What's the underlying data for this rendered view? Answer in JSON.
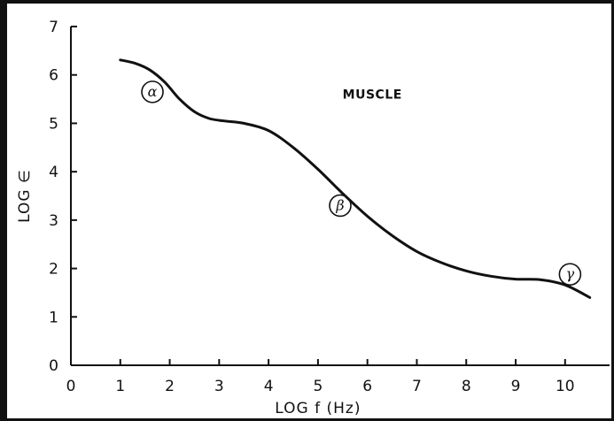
{
  "chart_data": {
    "type": "line",
    "title": "",
    "xlabel": "LOG f (Hz)",
    "ylabel": "LOG ∈",
    "xlim": [
      0,
      10.9
    ],
    "ylim": [
      0,
      7
    ],
    "x_ticks": [
      "0",
      "1",
      "2",
      "3",
      "4",
      "5",
      "6",
      "7",
      "8",
      "9",
      "10"
    ],
    "y_ticks": [
      "0",
      "1",
      "2",
      "3",
      "4",
      "5",
      "6",
      "7"
    ],
    "grid": false,
    "series": [
      {
        "name": "MUSCLE",
        "x": [
          1.0,
          1.3,
          1.6,
          1.9,
          2.2,
          2.5,
          2.8,
          3.1,
          3.5,
          4.0,
          4.5,
          5.0,
          5.5,
          6.0,
          6.5,
          7.0,
          7.5,
          8.0,
          8.5,
          9.0,
          9.5,
          10.0,
          10.5
        ],
        "y": [
          6.31,
          6.24,
          6.1,
          5.85,
          5.5,
          5.24,
          5.1,
          5.05,
          5.0,
          4.85,
          4.5,
          4.05,
          3.55,
          3.08,
          2.68,
          2.35,
          2.12,
          1.95,
          1.84,
          1.78,
          1.77,
          1.66,
          1.4
        ]
      }
    ],
    "annotations": [
      {
        "text": "MUSCLE",
        "x": 6.1,
        "y": 5.6
      },
      {
        "text": "α",
        "x": 1.65,
        "y": 5.65
      },
      {
        "text": "β",
        "x": 5.45,
        "y": 3.3
      },
      {
        "text": "γ",
        "x": 10.1,
        "y": 1.88
      }
    ]
  }
}
